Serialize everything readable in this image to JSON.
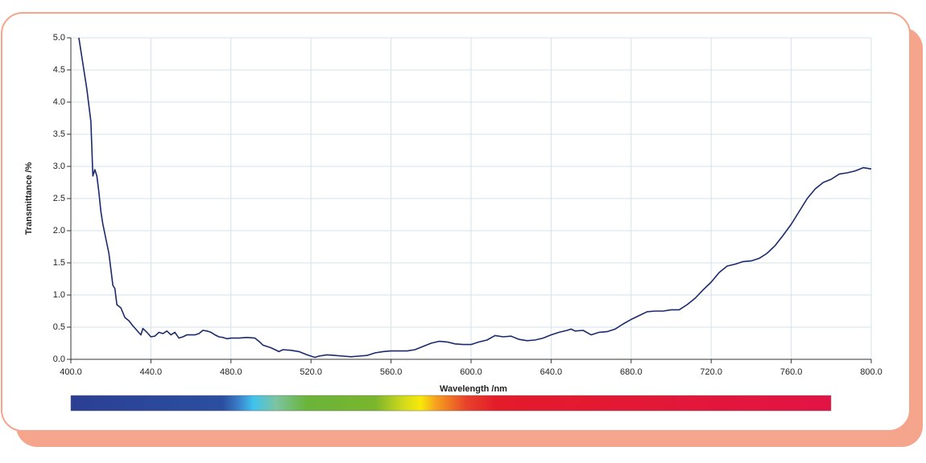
{
  "chart_data": {
    "type": "line",
    "x_label": "Wavelength /nm",
    "y_label": "Transmittance /%",
    "xlim": [
      400,
      800
    ],
    "xticks": [
      {
        "value": 400,
        "label": "400.0"
      },
      {
        "value": 440,
        "label": "440.0"
      },
      {
        "value": 480,
        "label": "480.0"
      },
      {
        "value": 520,
        "label": "520.0"
      },
      {
        "value": 560,
        "label": "560.0"
      },
      {
        "value": 600,
        "label": "600.0"
      },
      {
        "value": 640,
        "label": "640.0"
      },
      {
        "value": 680,
        "label": "680.0"
      },
      {
        "value": 720,
        "label": "720.0"
      },
      {
        "value": 760,
        "label": "760.0"
      },
      {
        "value": 800,
        "label": "800.0"
      }
    ],
    "ylim": [
      0,
      5
    ],
    "yticks": [
      {
        "value": 0,
        "label": "0.0"
      },
      0.5,
      {
        "value": 1,
        "label": "1.0"
      },
      1.5,
      {
        "value": 2,
        "label": "2.0"
      },
      2.5,
      {
        "value": 3,
        "label": "3.0"
      },
      3.5,
      {
        "value": 4,
        "label": "4.0"
      },
      4.5,
      {
        "value": 5,
        "label": "5.0"
      }
    ],
    "grid": true,
    "series": [
      {
        "color": "#1a2a6c",
        "x": [
          404,
          406,
          408,
          410,
          411,
          412,
          413,
          414,
          415,
          416,
          418,
          419,
          420,
          421,
          422,
          423,
          425,
          427,
          429,
          431,
          433,
          435,
          436,
          438,
          440,
          442,
          444,
          446,
          448,
          450,
          452,
          454,
          456,
          458,
          460,
          462,
          464,
          466,
          468,
          470,
          472,
          474,
          476,
          478,
          480,
          484,
          488,
          492,
          494,
          496,
          500,
          504,
          506,
          510,
          514,
          518,
          520,
          522,
          524,
          528,
          532,
          536,
          540,
          544,
          548,
          552,
          556,
          560,
          564,
          568,
          572,
          576,
          580,
          584,
          588,
          592,
          596,
          600,
          604,
          608,
          612,
          616,
          620,
          624,
          628,
          632,
          636,
          640,
          644,
          648,
          650,
          652,
          656,
          660,
          664,
          668,
          672,
          676,
          680,
          684,
          688,
          692,
          696,
          700,
          704,
          708,
          712,
          716,
          720,
          724,
          728,
          732,
          736,
          740,
          744,
          748,
          752,
          756,
          760,
          764,
          768,
          772,
          776,
          780,
          784,
          788,
          792,
          796,
          800
        ],
        "values": [
          5.0,
          4.6,
          4.2,
          3.7,
          2.85,
          2.95,
          2.85,
          2.6,
          2.3,
          2.1,
          1.8,
          1.65,
          1.4,
          1.15,
          1.1,
          0.85,
          0.8,
          0.65,
          0.6,
          0.52,
          0.45,
          0.38,
          0.48,
          0.42,
          0.35,
          0.36,
          0.42,
          0.4,
          0.44,
          0.38,
          0.42,
          0.33,
          0.35,
          0.38,
          0.38,
          0.38,
          0.4,
          0.45,
          0.44,
          0.42,
          0.38,
          0.35,
          0.34,
          0.32,
          0.33,
          0.33,
          0.34,
          0.33,
          0.28,
          0.22,
          0.18,
          0.12,
          0.15,
          0.14,
          0.12,
          0.07,
          0.05,
          0.03,
          0.05,
          0.07,
          0.06,
          0.05,
          0.04,
          0.05,
          0.06,
          0.1,
          0.12,
          0.13,
          0.13,
          0.13,
          0.15,
          0.2,
          0.25,
          0.28,
          0.27,
          0.24,
          0.23,
          0.23,
          0.27,
          0.3,
          0.37,
          0.35,
          0.36,
          0.31,
          0.29,
          0.3,
          0.33,
          0.38,
          0.42,
          0.45,
          0.47,
          0.44,
          0.45,
          0.38,
          0.42,
          0.43,
          0.47,
          0.55,
          0.62,
          0.68,
          0.74,
          0.75,
          0.75,
          0.77,
          0.77,
          0.85,
          0.95,
          1.08,
          1.2,
          1.35,
          1.45,
          1.48,
          1.52,
          1.53,
          1.57,
          1.65,
          1.77,
          1.93,
          2.1,
          2.3,
          2.5,
          2.65,
          2.75,
          2.8,
          2.88,
          2.9,
          2.93,
          2.98,
          2.96
        ]
      }
    ]
  }
}
